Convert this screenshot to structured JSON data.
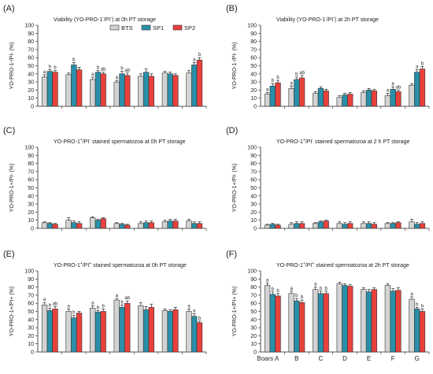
{
  "colors": {
    "BTS": "#d3d3d3",
    "SP1": "#2a8fa8",
    "SP2": "#e8413c"
  },
  "legend": [
    "BTS",
    "SP1",
    "SP2"
  ],
  "first_category_label": "Boars A",
  "chart_data": [
    {
      "panel": "(A)",
      "type": "bar",
      "title_html": "Viability (YO-PRO-1<tspan baseline-shift='super' font-size='5'>-</tspan>/PI<tspan baseline-shift='super' font-size='5'>-</tspan>) at 0h PT storage",
      "title": "Viability (YO-PRO-1-/PI-) at 0h PT storage",
      "ylabel": "YO-PRO-1-/PI- (%)",
      "ylim": [
        0,
        100
      ],
      "yticks": [
        0,
        10,
        20,
        30,
        40,
        50,
        60,
        70,
        80,
        90,
        100
      ],
      "show_xlabels": false,
      "show_legend": true,
      "categories": [
        "A",
        "B",
        "C",
        "D",
        "E",
        "F",
        "G"
      ],
      "series": [
        {
          "name": "BTS",
          "values": [
            36,
            39,
            33,
            30,
            37,
            41,
            41
          ],
          "err": [
            3,
            2,
            3,
            2,
            3,
            2,
            3
          ],
          "letters": [
            "a",
            "",
            "a",
            "a",
            "",
            "",
            ""
          ]
        },
        {
          "name": "SP1",
          "values": [
            43,
            51,
            42,
            40,
            42,
            40,
            51
          ],
          "err": [
            2,
            3,
            2,
            3,
            4,
            2,
            3
          ],
          "letters": [
            "b",
            "b",
            "b",
            "b",
            "",
            "",
            "a"
          ]
        },
        {
          "name": "SP2",
          "values": [
            42,
            45,
            40,
            38,
            37,
            38,
            57
          ],
          "err": [
            2,
            3,
            2,
            3,
            3,
            2,
            3
          ],
          "letters": [
            "b",
            "",
            "ab",
            "ab",
            "",
            "",
            "b"
          ]
        }
      ]
    },
    {
      "panel": "(B)",
      "type": "bar",
      "title_html": "Viability (YO-PRO-1<tspan baseline-shift='super' font-size='5'>-</tspan>/PI<tspan baseline-shift='super' font-size='5'>-</tspan>) at 2h PT storage",
      "title": "Viability (YO-PRO-1-/PI-) at 2h PT storage",
      "ylabel": "YO-PRO-1-/PI- (%)",
      "ylim": [
        0,
        100
      ],
      "yticks": [
        0,
        10,
        20,
        30,
        40,
        50,
        60,
        70,
        80,
        90,
        100
      ],
      "show_xlabels": false,
      "show_legend": false,
      "categories": [
        "A",
        "B",
        "C",
        "D",
        "E",
        "F",
        "G"
      ],
      "series": [
        {
          "name": "BTS",
          "values": [
            15,
            22,
            16,
            11,
            17,
            13,
            26
          ],
          "err": [
            2,
            3,
            2,
            2,
            2,
            3,
            2
          ],
          "letters": [
            "a",
            "a",
            "",
            "",
            "",
            "a",
            ""
          ]
        },
        {
          "name": "SP1",
          "values": [
            25,
            33,
            22,
            14,
            20,
            21,
            42
          ],
          "err": [
            3,
            3,
            2,
            2,
            2,
            3,
            3
          ],
          "letters": [
            "b",
            "b",
            "",
            "",
            "",
            "b",
            "a"
          ]
        },
        {
          "name": "SP2",
          "values": [
            29,
            35,
            19,
            15,
            19,
            18,
            46
          ],
          "err": [
            3,
            3,
            2,
            2,
            2,
            2,
            3
          ],
          "letters": [
            "b",
            "ab",
            "",
            "",
            "",
            "ab",
            "b"
          ]
        }
      ]
    },
    {
      "panel": "(C)",
      "type": "bar",
      "title_html": "YO-PRO-1<tspan baseline-shift='super' font-size='5'>+</tspan>/PI<tspan baseline-shift='super' font-size='5'>-</tspan> stained spermatozoa at 0h PT storage",
      "title": "YO-PRO-1+/PI- stained spermatozoa at 0h PT storage",
      "ylabel": "YO-PRO-1+/PI- (%)",
      "ylim": [
        0,
        100
      ],
      "yticks": [
        0,
        10,
        20,
        30,
        40,
        50,
        60,
        70,
        80,
        90,
        100
      ],
      "show_xlabels": false,
      "show_legend": false,
      "categories": [
        "A",
        "B",
        "C",
        "D",
        "E",
        "F",
        "G"
      ],
      "series": [
        {
          "name": "BTS",
          "values": [
            7,
            10,
            13,
            6,
            6,
            8,
            9
          ],
          "err": [
            1,
            3,
            1,
            1,
            2,
            2,
            2
          ],
          "letters": [
            "",
            "",
            "",
            "",
            "",
            "",
            ""
          ]
        },
        {
          "name": "SP1",
          "values": [
            6,
            7,
            10,
            5,
            7,
            9,
            6
          ],
          "err": [
            1,
            2,
            1,
            1,
            2,
            2,
            2
          ],
          "letters": [
            "",
            "",
            "",
            "",
            "",
            "",
            ""
          ]
        },
        {
          "name": "SP2",
          "values": [
            5,
            6,
            12,
            4,
            7,
            9,
            6
          ],
          "err": [
            1,
            2,
            1,
            1,
            2,
            2,
            2
          ],
          "letters": [
            "",
            "",
            "",
            "",
            "",
            "",
            ""
          ]
        }
      ]
    },
    {
      "panel": "(D)",
      "type": "bar",
      "title_html": "YO-PRO-1<tspan baseline-shift='super' font-size='5'>+</tspan>/PI<tspan baseline-shift='super' font-size='5'>-</tspan> stained spermatozoa at 2 h PT storage",
      "title": "YO-PRO-1+/PI- stained spermatozoa at 2 h PT storage",
      "ylabel": "YO-PRO-1+/PI- (%)",
      "ylim": [
        0,
        100
      ],
      "yticks": [
        0,
        10,
        20,
        30,
        40,
        50,
        60,
        70,
        80,
        90,
        100
      ],
      "show_xlabels": false,
      "show_legend": false,
      "categories": [
        "A",
        "B",
        "C",
        "D",
        "E",
        "F",
        "G"
      ],
      "series": [
        {
          "name": "BTS",
          "values": [
            4,
            5,
            6,
            6,
            6,
            6,
            8
          ],
          "err": [
            1,
            2,
            1,
            2,
            2,
            1,
            3
          ],
          "letters": [
            "",
            "",
            "",
            "",
            "",
            "",
            ""
          ]
        },
        {
          "name": "SP1",
          "values": [
            5,
            6,
            8,
            5,
            6,
            6,
            5
          ],
          "err": [
            1,
            2,
            1,
            2,
            2,
            1,
            2
          ],
          "letters": [
            "",
            "",
            "",
            "",
            "",
            "",
            ""
          ]
        },
        {
          "name": "SP2",
          "values": [
            4,
            6,
            9,
            6,
            5,
            7,
            6
          ],
          "err": [
            1,
            2,
            1,
            2,
            2,
            1,
            2
          ],
          "letters": [
            "",
            "",
            "",
            "",
            "",
            "",
            ""
          ]
        }
      ]
    },
    {
      "panel": "(E)",
      "type": "bar",
      "title_html": "YO-PRO-1<tspan baseline-shift='super' font-size='5'>+</tspan>/PI<tspan baseline-shift='super' font-size='5'>+</tspan> stained spermatozoa at 0h PT storage",
      "title": "YO-PRO-1+/PI+ stained spermatozoa at 0h PT storage",
      "ylabel": "YO-PRO-1+/PI+ (%)",
      "ylim": [
        0,
        100
      ],
      "yticks": [
        0,
        10,
        20,
        30,
        40,
        50,
        60,
        70,
        80,
        90,
        100
      ],
      "show_xlabels": false,
      "show_legend": false,
      "categories": [
        "A",
        "B",
        "C",
        "D",
        "E",
        "F",
        "G"
      ],
      "series": [
        {
          "name": "BTS",
          "values": [
            58,
            50,
            54,
            64,
            57,
            51,
            50
          ],
          "err": [
            3,
            3,
            3,
            2,
            4,
            2,
            3
          ],
          "letters": [
            "a",
            "a",
            "a",
            "a",
            "",
            "",
            "a"
          ]
        },
        {
          "name": "SP1",
          "values": [
            51,
            42,
            49,
            55,
            52,
            50,
            44
          ],
          "err": [
            3,
            3,
            2,
            3,
            4,
            2,
            3
          ],
          "letters": [
            "b",
            "b",
            "b",
            "b",
            "",
            "",
            "a"
          ]
        },
        {
          "name": "SP2",
          "values": [
            53,
            48,
            50,
            60,
            55,
            52,
            36
          ],
          "err": [
            3,
            2,
            3,
            3,
            4,
            3,
            2
          ],
          "letters": [
            "ab",
            "",
            "b",
            "ab",
            "",
            "",
            "b"
          ]
        }
      ]
    },
    {
      "panel": "(F)",
      "type": "bar",
      "title_html": "YO-PRO-1<tspan baseline-shift='super' font-size='5'>+</tspan>/PI<tspan baseline-shift='super' font-size='5'>+</tspan> stained spermatozoa at 2h PT storage",
      "title": "YO-PRO-1+/PI+ stained spermatozoa at 2h PT storage",
      "ylabel": "YO-PRO-1+/PI+ (%)",
      "ylim": [
        0,
        100
      ],
      "yticks": [
        0,
        10,
        20,
        30,
        40,
        50,
        60,
        70,
        80,
        90,
        100
      ],
      "show_xlabels": true,
      "show_legend": false,
      "categories": [
        "A",
        "B",
        "C",
        "D",
        "E",
        "F",
        "G"
      ],
      "series": [
        {
          "name": "BTS",
          "values": [
            82,
            72,
            77,
            84,
            77,
            82,
            65
          ],
          "err": [
            3,
            3,
            3,
            2,
            2,
            2,
            3
          ],
          "letters": [
            "a",
            "a",
            "a",
            "",
            "",
            "",
            "a"
          ]
        },
        {
          "name": "SP1",
          "values": [
            71,
            63,
            72,
            82,
            74,
            75,
            53
          ],
          "err": [
            3,
            3,
            3,
            2,
            3,
            3,
            2
          ],
          "letters": [
            "b",
            "b",
            "b",
            "",
            "",
            "",
            "b"
          ]
        },
        {
          "name": "SP2",
          "values": [
            69,
            61,
            72,
            81,
            77,
            76,
            50
          ],
          "err": [
            3,
            3,
            3,
            2,
            2,
            3,
            3
          ],
          "letters": [
            "b",
            "b",
            "b",
            "",
            "",
            "",
            "b"
          ]
        }
      ]
    }
  ]
}
